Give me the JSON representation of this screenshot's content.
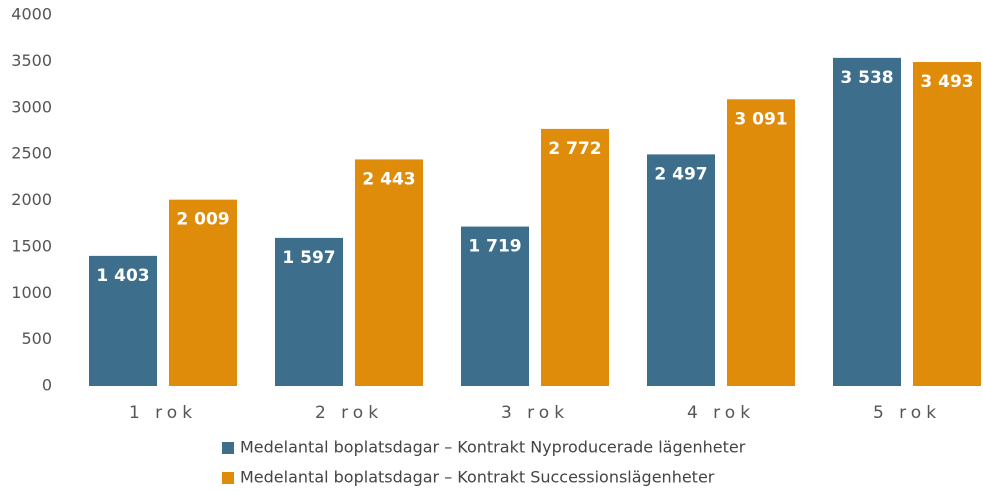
{
  "chart_data": {
    "type": "bar",
    "categories": [
      "1 rok",
      "2 rok",
      "3 rok",
      "4 rok",
      "5 rok"
    ],
    "series": [
      {
        "name": "Medelantal boplatsdagar – Kontrakt Nyproducerade lägenheter",
        "color": "#3d6e8c",
        "values": [
          1403,
          1597,
          1719,
          2497,
          3538
        ],
        "value_labels": [
          "1 403",
          "1 597",
          "1 719",
          "2 497",
          "3 538"
        ]
      },
      {
        "name": "Medelantal boplatsdagar – Kontrakt Successionslägenheter",
        "color": "#e08c0b",
        "values": [
          2009,
          2443,
          2772,
          3091,
          3493
        ],
        "value_labels": [
          "2 009",
          "2 443",
          "2 772",
          "3 091",
          "3 493"
        ]
      }
    ],
    "ylim": [
      0,
      4000
    ],
    "yticks": [
      0,
      500,
      1000,
      1500,
      2000,
      2500,
      3000,
      3500,
      4000
    ],
    "grid": false
  }
}
